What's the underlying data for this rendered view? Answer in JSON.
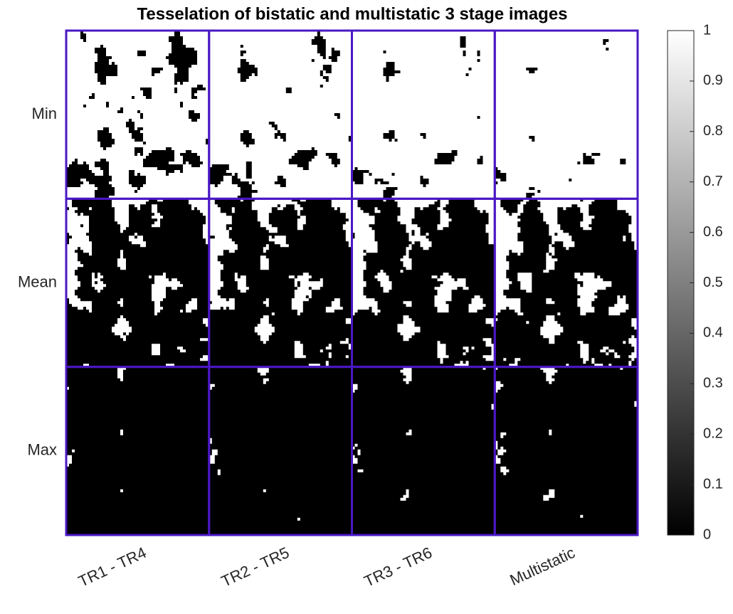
{
  "chart_data": {
    "type": "image_grid",
    "title": "Tesselation of bistatic and multistatic 3 stage images",
    "rows": [
      "Min",
      "Mean",
      "Max"
    ],
    "columns": [
      "TR1 - TR4",
      "TR2 - TR5",
      "TR3 - TR6",
      "Multistatic"
    ],
    "border_color": "#4a18c4",
    "colormap": "gray",
    "colorbar": {
      "lim": [
        0,
        1
      ],
      "ticks": [
        0,
        0.1,
        0.2,
        0.3,
        0.4,
        0.5,
        0.6,
        0.7,
        0.8,
        0.9,
        1
      ]
    }
  }
}
